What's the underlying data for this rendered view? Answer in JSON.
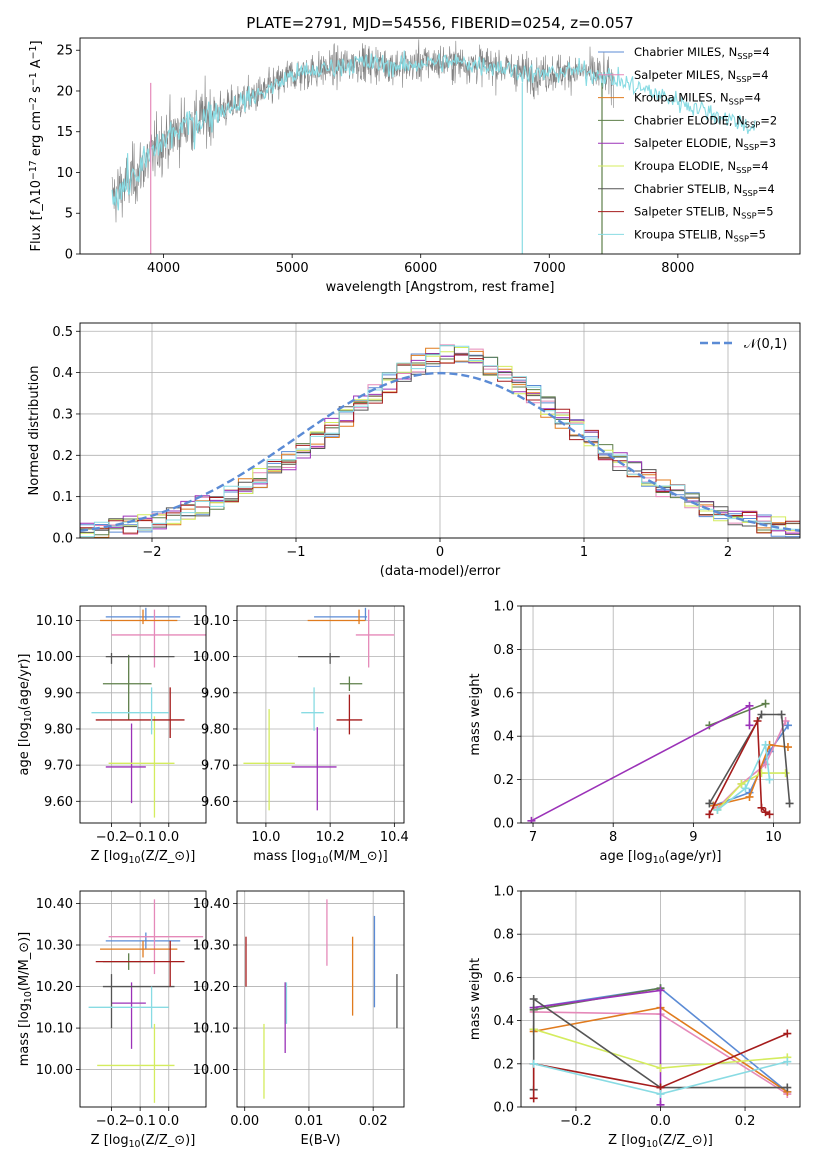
{
  "figure": {
    "title": "PLATE=2791, MJD=54556, FIBERID=0254, z=0.057"
  },
  "series": [
    {
      "name": "Chabrier MILES, N$_{SSP}$=4",
      "color": "#5b8bd5"
    },
    {
      "name": "Salpeter MILES, N$_{SSP}$=4",
      "color": "#e589b9"
    },
    {
      "name": "Kroupa MILES, N$_{SSP}$=4",
      "color": "#e07b1e"
    },
    {
      "name": "Chabrier ELODIE, N$_{SSP}$=2",
      "color": "#5e7f4a"
    },
    {
      "name": "Salpeter ELODIE, N$_{SSP}$=3",
      "color": "#9b32b8"
    },
    {
      "name": "Kroupa ELODIE, N$_{SSP}$=4",
      "color": "#d4ec5e"
    },
    {
      "name": "Chabrier STELIB, N$_{SSP}$=4",
      "color": "#555555"
    },
    {
      "name": "Salpeter STELIB, N$_{SSP}$=5",
      "color": "#a51c1c"
    },
    {
      "name": "Kroupa STELIB, N$_{SSP}$=5",
      "color": "#88dbe3"
    }
  ],
  "chart_data": [
    {
      "id": "spectrum",
      "type": "line",
      "xlabel": "wavelength [Angstrom, rest frame]",
      "ylabel": "Flux [f$_\\lambda$10$^{-17}$ erg cm$^{-2}$ s$^{-1}$ A$^{-1}$]",
      "xlim": [
        3350,
        8950
      ],
      "ylim": [
        0,
        26.5
      ],
      "xticks": [
        4000,
        5000,
        6000,
        7000,
        8000
      ],
      "yticks": [
        0,
        5,
        10,
        15,
        20,
        25
      ],
      "data_color": "#808080",
      "data_trend": {
        "x": [
          3600,
          3700,
          3800,
          3900,
          4000,
          4200,
          4500,
          4800,
          5000,
          5200,
          5500,
          5900,
          6000,
          6300,
          6600,
          6900,
          7200,
          7400,
          7500
        ],
        "y": [
          7,
          8.5,
          10,
          12,
          14,
          16,
          18,
          20,
          22,
          22.5,
          23.5,
          23,
          23.5,
          23.5,
          23,
          22,
          22.5,
          22,
          21
        ]
      },
      "model_trend": {
        "x": [
          3600,
          3700,
          3800,
          3900,
          4000,
          4200,
          4500,
          4800,
          5000,
          5200,
          5500,
          5900,
          6000,
          6300,
          6600,
          6900,
          7200,
          7400,
          8600
        ],
        "y": [
          7,
          8.5,
          10,
          12,
          14,
          16,
          18,
          20,
          22,
          22.5,
          23.5,
          23,
          23.5,
          23.5,
          23,
          22,
          22.5,
          22,
          15.5
        ]
      },
      "grid": false,
      "legend": "right"
    },
    {
      "id": "residuals",
      "type": "line",
      "xlabel": "(data-model)/error",
      "ylabel": "Normed distribution",
      "xlim": [
        -2.5,
        2.5
      ],
      "ylim": [
        0,
        0.52
      ],
      "xticks": [
        -2,
        -1,
        0,
        1,
        2
      ],
      "yticks": [
        0,
        0.1,
        0.2,
        0.3,
        0.4,
        0.5
      ],
      "grid": true,
      "legend": "top-right",
      "gaussian_label": "$\\mathcal{N}(0,1)$",
      "gaussian_color": "#5b8bd5",
      "bin_width": 0.1
    },
    {
      "id": "age_vs_z",
      "type": "scatter",
      "xlabel": "Z [log$_{10}$(Z/Z$_\\odot$)]",
      "ylabel": "age  [log$_{10}$(age/yr)]",
      "xlim": [
        -0.31,
        0.13
      ],
      "ylim": [
        9.54,
        10.14
      ],
      "xticks": [
        -0.2,
        -0.1,
        0.0
      ],
      "yticks": [
        9.6,
        9.7,
        9.8,
        9.9,
        10.0,
        10.1
      ],
      "grid": true,
      "points": [
        {
          "x": -0.08,
          "y": 10.11,
          "xerr": [
            0.14,
            0.12
          ],
          "yerr": [
            0.01,
            0.025
          ]
        },
        {
          "x": -0.05,
          "y": 10.06,
          "xerr": [
            0.15,
            0.18
          ],
          "yerr": [
            0.09,
            0.07
          ]
        },
        {
          "x": -0.09,
          "y": 10.1,
          "xerr": [
            0.15,
            0.12
          ],
          "yerr": [
            0.01,
            0.03
          ]
        },
        {
          "x": -0.14,
          "y": 9.925,
          "xerr": [
            0.09,
            0.08
          ],
          "yerr": [
            0.1,
            0.08
          ]
        },
        {
          "x": -0.13,
          "y": 9.695,
          "xerr": [
            0.09,
            0.05
          ],
          "yerr": [
            0.1,
            0.12
          ]
        },
        {
          "x": -0.05,
          "y": 9.705,
          "xerr": [
            0.16,
            0.07
          ],
          "yerr": [
            0.15,
            0.13
          ]
        },
        {
          "x": -0.2,
          "y": 10.0,
          "xerr": [
            0.02,
            0.22
          ],
          "yerr": [
            0.02,
            0.01
          ]
        },
        {
          "x": 0.005,
          "y": 9.825,
          "xerr": [
            0.26,
            0.05
          ],
          "yerr": [
            0.05,
            0.09
          ]
        },
        {
          "x": -0.06,
          "y": 9.845,
          "xerr": [
            0.21,
            0.06
          ],
          "yerr": [
            0.06,
            0.07
          ]
        }
      ]
    },
    {
      "id": "age_vs_mass",
      "type": "scatter",
      "xlabel": "mass [log$_{10}$(M/M$_\\odot$)]",
      "ylabel": "",
      "xlim": [
        9.91,
        10.43
      ],
      "ylim": [
        9.54,
        10.14
      ],
      "xticks": [
        10.0,
        10.2,
        10.4
      ],
      "yticks": [
        9.6,
        9.7,
        9.8,
        9.9,
        10.0,
        10.1
      ],
      "grid": true,
      "points": [
        {
          "x": 10.31,
          "y": 10.11,
          "xerr": [
            0.16,
            0.005
          ],
          "yerr": [
            0.01,
            0.025
          ]
        },
        {
          "x": 10.32,
          "y": 10.06,
          "xerr": [
            0.04,
            0.08
          ],
          "yerr": [
            0.09,
            0.07
          ]
        },
        {
          "x": 10.29,
          "y": 10.1,
          "xerr": [
            0.16,
            0.02
          ],
          "yerr": [
            0.01,
            0.03
          ]
        },
        {
          "x": 10.26,
          "y": 9.925,
          "xerr": [
            0.03,
            0.04
          ],
          "yerr": [
            0.02,
            0.02
          ]
        },
        {
          "x": 10.16,
          "y": 9.695,
          "xerr": [
            0.08,
            0.06
          ],
          "yerr": [
            0.12,
            0.11
          ]
        },
        {
          "x": 10.01,
          "y": 9.705,
          "xerr": [
            0.08,
            0.08
          ],
          "yerr": [
            0.13,
            0.15
          ]
        },
        {
          "x": 10.2,
          "y": 10.0,
          "xerr": [
            0.1,
            0.03
          ],
          "yerr": [
            0.02,
            0.01
          ]
        },
        {
          "x": 10.26,
          "y": 9.825,
          "xerr": [
            0.04,
            0.04
          ],
          "yerr": [
            0.04,
            0.07
          ]
        },
        {
          "x": 10.15,
          "y": 9.845,
          "xerr": [
            0.04,
            0.03
          ],
          "yerr": [
            0.05,
            0.07
          ]
        }
      ]
    },
    {
      "id": "weight_vs_age",
      "type": "line",
      "xlabel": "age  [log$_{10}$(age/yr)]",
      "ylabel": "mass weight",
      "xlim": [
        6.85,
        10.33
      ],
      "ylim": [
        0,
        1
      ],
      "xticks": [
        7,
        8,
        9,
        10
      ],
      "yticks": [
        0,
        0.2,
        0.4,
        0.6,
        0.8,
        1.0
      ],
      "grid": true,
      "series_points": [
        {
          "x": [
            9.25,
            9.7,
            9.95,
            10.18
          ],
          "y": [
            0.08,
            0.14,
            0.33,
            0.45
          ]
        },
        {
          "x": [
            9.3,
            9.6,
            9.9,
            10.15
          ],
          "y": [
            0.07,
            0.18,
            0.27,
            0.47
          ]
        },
        {
          "x": [
            9.25,
            9.7,
            9.95,
            10.18
          ],
          "y": [
            0.08,
            0.12,
            0.36,
            0.35
          ]
        },
        {
          "x": [
            9.2,
            9.9
          ],
          "y": [
            0.45,
            0.55
          ]
        },
        {
          "x": [
            6.98,
            9.7,
            9.7
          ],
          "y": [
            0.01,
            0.54,
            0.45
          ]
        },
        {
          "x": [
            9.3,
            9.6,
            9.85,
            10.15
          ],
          "y": [
            0.06,
            0.18,
            0.23,
            0.23
          ]
        },
        {
          "x": [
            9.2,
            9.85,
            10.1,
            10.2
          ],
          "y": [
            0.09,
            0.5,
            0.5,
            0.09
          ]
        },
        {
          "x": [
            9.2,
            9.8,
            9.85,
            9.9,
            9.95
          ],
          "y": [
            0.04,
            0.47,
            0.07,
            0.05,
            0.04
          ]
        },
        {
          "x": [
            9.3,
            9.65,
            9.9,
            9.95
          ],
          "y": [
            0.06,
            0.16,
            0.36,
            0.2
          ]
        }
      ]
    },
    {
      "id": "mass_vs_z",
      "type": "scatter",
      "xlabel": "Z [log$_{10}$(Z/Z$_\\odot$)]",
      "ylabel": "mass [log$_{10}$(M/M$_\\odot$)]",
      "xlim": [
        -0.31,
        0.13
      ],
      "ylim": [
        9.91,
        10.43
      ],
      "xticks": [
        -0.2,
        -0.1,
        0.0
      ],
      "yticks": [
        10.0,
        10.1,
        10.2,
        10.3,
        10.4
      ],
      "grid": true,
      "points": [
        {
          "x": -0.08,
          "y": 10.31,
          "xerr": [
            0.14,
            0.12
          ],
          "yerr": [
            0.02,
            0.02
          ]
        },
        {
          "x": -0.05,
          "y": 10.32,
          "xerr": [
            0.16,
            0.17
          ],
          "yerr": [
            0.09,
            0.09
          ]
        },
        {
          "x": -0.09,
          "y": 10.29,
          "xerr": [
            0.15,
            0.12
          ],
          "yerr": [
            0.02,
            0.02
          ]
        },
        {
          "x": -0.14,
          "y": 10.26,
          "xerr": [
            0.09,
            0.08
          ],
          "yerr": [
            0.02,
            0.02
          ]
        },
        {
          "x": -0.13,
          "y": 10.16,
          "xerr": [
            0.07,
            0.05
          ],
          "yerr": [
            0.11,
            0.05
          ]
        },
        {
          "x": -0.05,
          "y": 10.01,
          "xerr": [
            0.2,
            0.07
          ],
          "yerr": [
            0.09,
            0.1
          ]
        },
        {
          "x": -0.2,
          "y": 10.2,
          "xerr": [
            0.03,
            0.22
          ],
          "yerr": [
            0.1,
            0.03
          ]
        },
        {
          "x": 0.005,
          "y": 10.26,
          "xerr": [
            0.26,
            0.05
          ],
          "yerr": [
            0.06,
            0.05
          ]
        },
        {
          "x": -0.06,
          "y": 10.15,
          "xerr": [
            0.22,
            0.06
          ],
          "yerr": [
            0.05,
            0.05
          ]
        }
      ]
    },
    {
      "id": "mass_vs_ebv",
      "type": "scatter",
      "xlabel": "E(B-V)",
      "ylabel": "",
      "xlim": [
        -0.0012,
        0.0248
      ],
      "ylim": [
        9.91,
        10.43
      ],
      "xticks": [
        0.0,
        0.01,
        0.02
      ],
      "yticks": [
        10.0,
        10.1,
        10.2,
        10.3,
        10.4
      ],
      "grid": true,
      "points": [
        {
          "x": 0.0202,
          "y": 10.31,
          "xerr": [
            0,
            0
          ],
          "yerr": [
            0.16,
            0.06
          ]
        },
        {
          "x": 0.0128,
          "y": 10.32,
          "xerr": [
            0,
            0
          ],
          "yerr": [
            0.07,
            0.09
          ]
        },
        {
          "x": 0.0168,
          "y": 10.29,
          "xerr": [
            0,
            0
          ],
          "yerr": [
            0.16,
            0.03
          ]
        },
        {
          "x": 0.0063,
          "y": 10.16,
          "xerr": [
            0,
            0
          ],
          "yerr": [
            0.05,
            0.05
          ]
        },
        {
          "x": 0.0063,
          "y": 10.16,
          "xerr": [
            0,
            0
          ],
          "yerr": [
            0.12,
            0.05
          ]
        },
        {
          "x": 0.003,
          "y": 10.01,
          "xerr": [
            0,
            0
          ],
          "yerr": [
            0.08,
            0.1
          ]
        },
        {
          "x": 0.0237,
          "y": 10.2,
          "xerr": [
            0,
            0
          ],
          "yerr": [
            0.1,
            0.03
          ]
        },
        {
          "x": 0.0002,
          "y": 10.26,
          "xerr": [
            0,
            0
          ],
          "yerr": [
            0.06,
            0.06
          ]
        },
        {
          "x": 0.0065,
          "y": 10.15,
          "xerr": [
            0,
            0
          ],
          "yerr": [
            0.04,
            0.06
          ]
        }
      ]
    },
    {
      "id": "weight_vs_z",
      "type": "line",
      "xlabel": "Z [log$_{10}$(Z/Z$_\\odot$)]",
      "ylabel": "mass weight",
      "xlim": [
        -0.33,
        0.33
      ],
      "ylim": [
        0,
        1
      ],
      "xticks": [
        -0.2,
        0.0,
        0.2
      ],
      "yticks": [
        0,
        0.2,
        0.4,
        0.6,
        0.8,
        1.0
      ],
      "grid": true,
      "series_points": [
        {
          "x": [
            -0.3,
            -0.3,
            0.0,
            0.3
          ],
          "y": [
            0.36,
            0.46,
            0.55,
            0.07
          ]
        },
        {
          "x": [
            -0.3,
            -0.3,
            0.0,
            0.3
          ],
          "y": [
            0.36,
            0.44,
            0.43,
            0.06
          ]
        },
        {
          "x": [
            -0.3,
            0.0,
            0.3
          ],
          "y": [
            0.35,
            0.46,
            0.07
          ]
        },
        {
          "x": [
            -0.3,
            0.0
          ],
          "y": [
            0.45,
            0.55
          ]
        },
        {
          "x": [
            -0.3,
            0.0,
            0.0
          ],
          "y": [
            0.46,
            0.54,
            0.01
          ]
        },
        {
          "x": [
            -0.3,
            0.0,
            0.3
          ],
          "y": [
            0.36,
            0.18,
            0.23
          ]
        },
        {
          "x": [
            -0.3,
            -0.3,
            0.0,
            0.3
          ],
          "y": [
            0.08,
            0.5,
            0.09,
            0.09
          ]
        },
        {
          "x": [
            -0.3,
            -0.3,
            0.0,
            0.3
          ],
          "y": [
            0.04,
            0.2,
            0.09,
            0.34
          ]
        },
        {
          "x": [
            -0.3,
            0.0,
            0.3
          ],
          "y": [
            0.2,
            0.06,
            0.21
          ]
        }
      ]
    }
  ]
}
